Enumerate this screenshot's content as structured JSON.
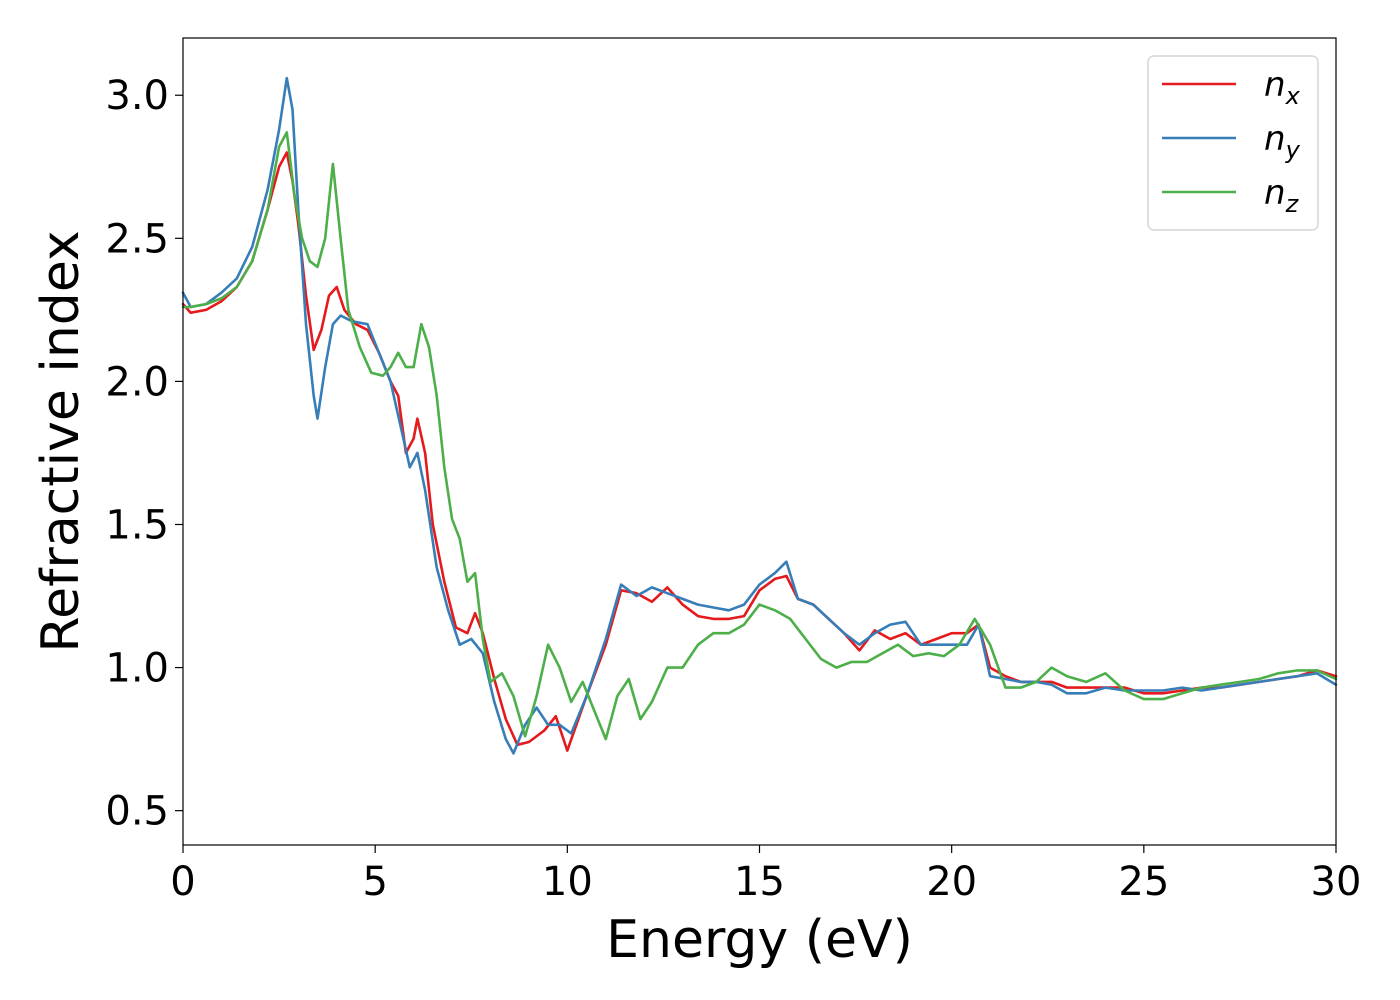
{
  "chart_data": {
    "type": "line",
    "title": "",
    "xlabel": "Energy (eV)",
    "ylabel": "Refractive index",
    "xlim": [
      0,
      30
    ],
    "ylim": [
      0.38,
      3.2
    ],
    "xticks": [
      0,
      5,
      10,
      15,
      20,
      25,
      30
    ],
    "xtick_labels": [
      "0",
      "5",
      "10",
      "15",
      "20",
      "25",
      "30"
    ],
    "yticks": [
      0.5,
      1.0,
      1.5,
      2.0,
      2.5,
      3.0
    ],
    "ytick_labels": [
      "0.5",
      "1.0",
      "1.5",
      "2.0",
      "2.5",
      "3.0"
    ],
    "grid": false,
    "legend_position": "top-right",
    "series": [
      {
        "name": "n",
        "subscript": "x",
        "color": "#e41a1c",
        "points": [
          [
            0,
            2.27
          ],
          [
            0.2,
            2.24
          ],
          [
            0.6,
            2.25
          ],
          [
            1.0,
            2.28
          ],
          [
            1.4,
            2.33
          ],
          [
            1.8,
            2.42
          ],
          [
            2.2,
            2.6
          ],
          [
            2.5,
            2.75
          ],
          [
            2.7,
            2.8
          ],
          [
            2.85,
            2.7
          ],
          [
            3.0,
            2.55
          ],
          [
            3.2,
            2.3
          ],
          [
            3.4,
            2.11
          ],
          [
            3.6,
            2.18
          ],
          [
            3.8,
            2.3
          ],
          [
            4.0,
            2.33
          ],
          [
            4.2,
            2.25
          ],
          [
            4.5,
            2.2
          ],
          [
            4.8,
            2.18
          ],
          [
            5.1,
            2.1
          ],
          [
            5.4,
            2.0
          ],
          [
            5.6,
            1.95
          ],
          [
            5.8,
            1.75
          ],
          [
            6.0,
            1.8
          ],
          [
            6.1,
            1.87
          ],
          [
            6.3,
            1.75
          ],
          [
            6.5,
            1.5
          ],
          [
            6.8,
            1.3
          ],
          [
            7.1,
            1.14
          ],
          [
            7.4,
            1.12
          ],
          [
            7.6,
            1.19
          ],
          [
            7.8,
            1.12
          ],
          [
            8.1,
            0.96
          ],
          [
            8.4,
            0.82
          ],
          [
            8.7,
            0.73
          ],
          [
            9.0,
            0.74
          ],
          [
            9.4,
            0.78
          ],
          [
            9.7,
            0.83
          ],
          [
            10.0,
            0.71
          ],
          [
            10.5,
            0.9
          ],
          [
            11.0,
            1.08
          ],
          [
            11.4,
            1.27
          ],
          [
            11.8,
            1.26
          ],
          [
            12.2,
            1.23
          ],
          [
            12.6,
            1.28
          ],
          [
            13.0,
            1.22
          ],
          [
            13.4,
            1.18
          ],
          [
            13.8,
            1.17
          ],
          [
            14.2,
            1.17
          ],
          [
            14.6,
            1.18
          ],
          [
            15.0,
            1.27
          ],
          [
            15.4,
            1.31
          ],
          [
            15.7,
            1.32
          ],
          [
            16.0,
            1.24
          ],
          [
            16.4,
            1.22
          ],
          [
            16.8,
            1.17
          ],
          [
            17.2,
            1.12
          ],
          [
            17.6,
            1.06
          ],
          [
            18.0,
            1.13
          ],
          [
            18.4,
            1.1
          ],
          [
            18.8,
            1.12
          ],
          [
            19.2,
            1.08
          ],
          [
            19.6,
            1.1
          ],
          [
            20.0,
            1.12
          ],
          [
            20.4,
            1.12
          ],
          [
            20.7,
            1.15
          ],
          [
            21.0,
            1.0
          ],
          [
            21.4,
            0.97
          ],
          [
            21.8,
            0.95
          ],
          [
            22.2,
            0.95
          ],
          [
            22.6,
            0.95
          ],
          [
            23.0,
            0.93
          ],
          [
            23.5,
            0.93
          ],
          [
            24.0,
            0.93
          ],
          [
            24.5,
            0.93
          ],
          [
            25.0,
            0.91
          ],
          [
            25.5,
            0.91
          ],
          [
            26.0,
            0.92
          ],
          [
            26.5,
            0.93
          ],
          [
            27.0,
            0.93
          ],
          [
            27.5,
            0.94
          ],
          [
            28.0,
            0.95
          ],
          [
            28.5,
            0.96
          ],
          [
            29.0,
            0.97
          ],
          [
            29.5,
            0.99
          ],
          [
            30.0,
            0.97
          ]
        ]
      },
      {
        "name": "n",
        "subscript": "y",
        "color": "#377eb8",
        "points": [
          [
            0,
            2.31
          ],
          [
            0.2,
            2.26
          ],
          [
            0.6,
            2.27
          ],
          [
            1.0,
            2.31
          ],
          [
            1.4,
            2.36
          ],
          [
            1.8,
            2.47
          ],
          [
            2.2,
            2.67
          ],
          [
            2.5,
            2.88
          ],
          [
            2.7,
            3.06
          ],
          [
            2.85,
            2.95
          ],
          [
            3.0,
            2.6
          ],
          [
            3.2,
            2.2
          ],
          [
            3.4,
            1.95
          ],
          [
            3.5,
            1.87
          ],
          [
            3.7,
            2.05
          ],
          [
            3.9,
            2.2
          ],
          [
            4.1,
            2.23
          ],
          [
            4.4,
            2.21
          ],
          [
            4.8,
            2.2
          ],
          [
            5.1,
            2.1
          ],
          [
            5.4,
            2.0
          ],
          [
            5.7,
            1.82
          ],
          [
            5.9,
            1.7
          ],
          [
            6.1,
            1.75
          ],
          [
            6.3,
            1.62
          ],
          [
            6.6,
            1.35
          ],
          [
            6.9,
            1.2
          ],
          [
            7.2,
            1.08
          ],
          [
            7.5,
            1.1
          ],
          [
            7.8,
            1.05
          ],
          [
            8.1,
            0.88
          ],
          [
            8.4,
            0.75
          ],
          [
            8.6,
            0.7
          ],
          [
            8.9,
            0.8
          ],
          [
            9.2,
            0.86
          ],
          [
            9.5,
            0.8
          ],
          [
            9.8,
            0.8
          ],
          [
            10.1,
            0.77
          ],
          [
            10.5,
            0.9
          ],
          [
            11.0,
            1.1
          ],
          [
            11.4,
            1.29
          ],
          [
            11.8,
            1.25
          ],
          [
            12.2,
            1.28
          ],
          [
            12.6,
            1.26
          ],
          [
            13.0,
            1.24
          ],
          [
            13.4,
            1.22
          ],
          [
            13.8,
            1.21
          ],
          [
            14.2,
            1.2
          ],
          [
            14.6,
            1.22
          ],
          [
            15.0,
            1.29
          ],
          [
            15.4,
            1.33
          ],
          [
            15.7,
            1.37
          ],
          [
            16.0,
            1.24
          ],
          [
            16.4,
            1.22
          ],
          [
            16.8,
            1.17
          ],
          [
            17.2,
            1.12
          ],
          [
            17.6,
            1.08
          ],
          [
            18.0,
            1.12
          ],
          [
            18.4,
            1.15
          ],
          [
            18.8,
            1.16
          ],
          [
            19.2,
            1.08
          ],
          [
            19.6,
            1.08
          ],
          [
            20.0,
            1.08
          ],
          [
            20.4,
            1.08
          ],
          [
            20.7,
            1.15
          ],
          [
            21.0,
            0.97
          ],
          [
            21.4,
            0.96
          ],
          [
            21.8,
            0.95
          ],
          [
            22.2,
            0.95
          ],
          [
            22.6,
            0.94
          ],
          [
            23.0,
            0.91
          ],
          [
            23.5,
            0.91
          ],
          [
            24.0,
            0.93
          ],
          [
            24.5,
            0.92
          ],
          [
            25.0,
            0.92
          ],
          [
            25.5,
            0.92
          ],
          [
            26.0,
            0.93
          ],
          [
            26.5,
            0.92
          ],
          [
            27.0,
            0.93
          ],
          [
            27.5,
            0.94
          ],
          [
            28.0,
            0.95
          ],
          [
            28.5,
            0.96
          ],
          [
            29.0,
            0.97
          ],
          [
            29.5,
            0.98
          ],
          [
            30.0,
            0.94
          ]
        ]
      },
      {
        "name": "n",
        "subscript": "z",
        "color": "#4daf4a",
        "points": [
          [
            0,
            2.26
          ],
          [
            0.2,
            2.26
          ],
          [
            0.6,
            2.27
          ],
          [
            1.0,
            2.29
          ],
          [
            1.4,
            2.33
          ],
          [
            1.8,
            2.42
          ],
          [
            2.2,
            2.6
          ],
          [
            2.5,
            2.82
          ],
          [
            2.7,
            2.87
          ],
          [
            2.9,
            2.65
          ],
          [
            3.1,
            2.5
          ],
          [
            3.3,
            2.42
          ],
          [
            3.5,
            2.4
          ],
          [
            3.7,
            2.5
          ],
          [
            3.9,
            2.76
          ],
          [
            4.1,
            2.5
          ],
          [
            4.3,
            2.25
          ],
          [
            4.6,
            2.12
          ],
          [
            4.9,
            2.03
          ],
          [
            5.2,
            2.02
          ],
          [
            5.4,
            2.05
          ],
          [
            5.6,
            2.1
          ],
          [
            5.8,
            2.05
          ],
          [
            6.0,
            2.05
          ],
          [
            6.2,
            2.2
          ],
          [
            6.4,
            2.12
          ],
          [
            6.6,
            1.95
          ],
          [
            6.8,
            1.7
          ],
          [
            7.0,
            1.52
          ],
          [
            7.2,
            1.45
          ],
          [
            7.4,
            1.3
          ],
          [
            7.6,
            1.33
          ],
          [
            7.8,
            1.1
          ],
          [
            8.0,
            0.95
          ],
          [
            8.3,
            0.98
          ],
          [
            8.6,
            0.9
          ],
          [
            8.9,
            0.76
          ],
          [
            9.2,
            0.9
          ],
          [
            9.5,
            1.08
          ],
          [
            9.8,
            1.0
          ],
          [
            10.1,
            0.88
          ],
          [
            10.4,
            0.95
          ],
          [
            10.7,
            0.85
          ],
          [
            11.0,
            0.75
          ],
          [
            11.3,
            0.9
          ],
          [
            11.6,
            0.96
          ],
          [
            11.9,
            0.82
          ],
          [
            12.2,
            0.88
          ],
          [
            12.6,
            1.0
          ],
          [
            13.0,
            1.0
          ],
          [
            13.4,
            1.08
          ],
          [
            13.8,
            1.12
          ],
          [
            14.2,
            1.12
          ],
          [
            14.6,
            1.15
          ],
          [
            15.0,
            1.22
          ],
          [
            15.4,
            1.2
          ],
          [
            15.8,
            1.17
          ],
          [
            16.2,
            1.1
          ],
          [
            16.6,
            1.03
          ],
          [
            17.0,
            1.0
          ],
          [
            17.4,
            1.02
          ],
          [
            17.8,
            1.02
          ],
          [
            18.2,
            1.05
          ],
          [
            18.6,
            1.08
          ],
          [
            19.0,
            1.04
          ],
          [
            19.4,
            1.05
          ],
          [
            19.8,
            1.04
          ],
          [
            20.2,
            1.08
          ],
          [
            20.6,
            1.17
          ],
          [
            21.0,
            1.08
          ],
          [
            21.4,
            0.93
          ],
          [
            21.8,
            0.93
          ],
          [
            22.2,
            0.95
          ],
          [
            22.6,
            1.0
          ],
          [
            23.0,
            0.97
          ],
          [
            23.5,
            0.95
          ],
          [
            24.0,
            0.98
          ],
          [
            24.5,
            0.92
          ],
          [
            25.0,
            0.89
          ],
          [
            25.5,
            0.89
          ],
          [
            26.0,
            0.91
          ],
          [
            26.5,
            0.93
          ],
          [
            27.0,
            0.94
          ],
          [
            27.5,
            0.95
          ],
          [
            28.0,
            0.96
          ],
          [
            28.5,
            0.98
          ],
          [
            29.0,
            0.99
          ],
          [
            29.5,
            0.99
          ],
          [
            30.0,
            0.96
          ]
        ]
      }
    ]
  }
}
